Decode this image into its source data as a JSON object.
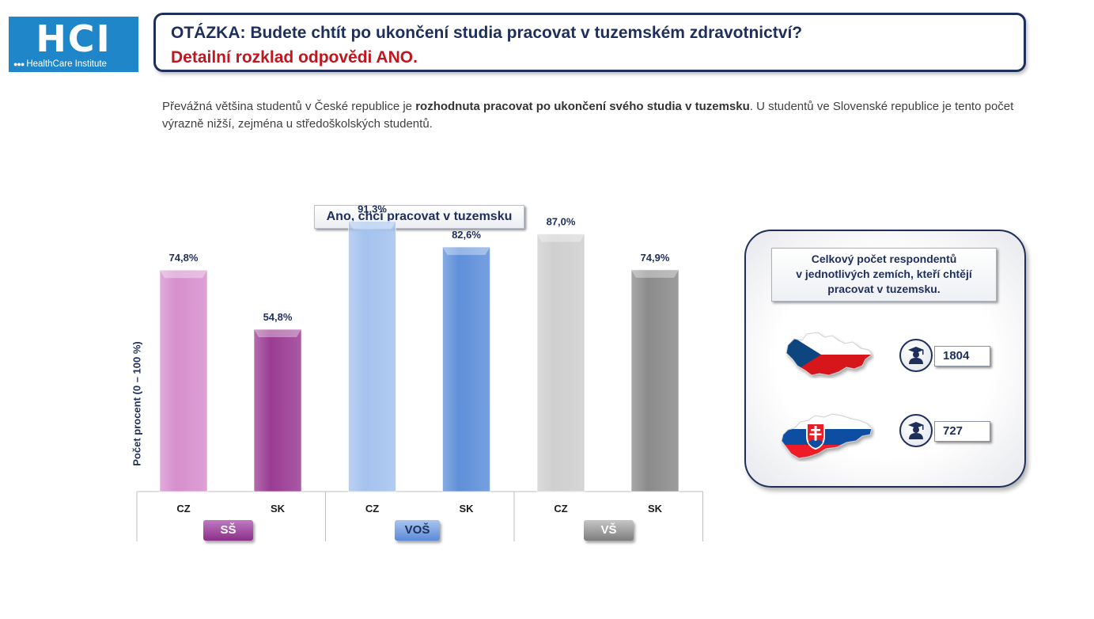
{
  "logo": {
    "text": "HCI",
    "subtitle": "HealthCare Institute"
  },
  "question": {
    "line1": "OTÁZKA: Budete chtít po ukončení studia pracovat v tuzemském zdravotnictví?",
    "line2": "Detailní rozklad odpovědi ANO."
  },
  "description": {
    "part1": "Převážná většina studentů v České republice je ",
    "bold": "rozhodnuta pracovat po ukončení svého studia v tuzemsku",
    "part2": ". U studentů ve Slovenské republice je tento počet výrazně nižší, zejména u středoškolských studentů."
  },
  "colors": {
    "ss_cz": "#d78fcd",
    "ss_sk": "#9a3c93",
    "vos_cz": "#a4c2ee",
    "vos_sk": "#5f8fd9",
    "vs_cz": "#cfcfcf",
    "vs_sk": "#8b8b8b",
    "label": "#1e2f5c"
  },
  "chart_data": {
    "type": "bar",
    "title": "Ano, chci pracovat v tuzemsku",
    "ylabel": "Počet procent  (0 – 100 %)",
    "ylim": [
      0,
      100
    ],
    "groups": [
      {
        "name": "SŠ",
        "categories": [
          "CZ",
          "SK"
        ],
        "values": [
          74.8,
          54.8
        ],
        "labels": [
          "74,8%",
          "54,8%"
        ]
      },
      {
        "name": "VOŠ",
        "categories": [
          "CZ",
          "SK"
        ],
        "values": [
          91.3,
          82.6
        ],
        "labels": [
          "91,3%",
          "82,6%"
        ]
      },
      {
        "name": "VŠ",
        "categories": [
          "CZ",
          "SK"
        ],
        "values": [
          87.0,
          74.9
        ],
        "labels": [
          "87,0%",
          "74,9%"
        ]
      }
    ]
  },
  "summary": {
    "title_line1": "Celkový počet respondentů",
    "title_line2": "v jednotlivých zemích, kteří chtějí",
    "title_line3": "pracovat v tuzemsku.",
    "cz": {
      "icon": "graduate-icon",
      "count": "1804"
    },
    "sk": {
      "icon": "graduate-icon",
      "count": "727"
    }
  }
}
